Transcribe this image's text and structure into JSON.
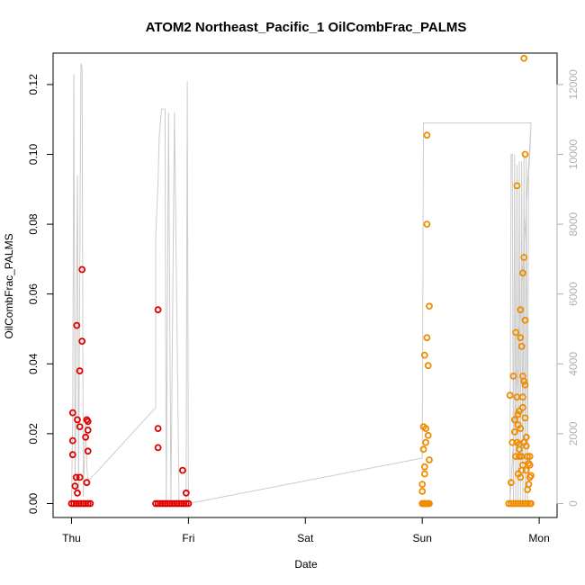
{
  "chart_data": {
    "type": "scatter",
    "title": "ATOM2 Northeast_Pacific_1 OilCombFrac_PALMS",
    "xlabel": "Date",
    "ylabel": "OilCombFrac_PALMS",
    "x_ticks": [
      "Thu",
      "Fri",
      "Sat",
      "Sun",
      "Mon"
    ],
    "x_tick_days": [
      0,
      1,
      2,
      3,
      4
    ],
    "ylim": [
      -0.004,
      0.129
    ],
    "y_ticks": [
      0.0,
      0.02,
      0.04,
      0.06,
      0.08,
      0.1,
      0.12
    ],
    "y_tick_labels": [
      "0.00",
      "0.02",
      "0.04",
      "0.06",
      "0.08",
      "0.10",
      "0.12"
    ],
    "y2lim": [
      -400,
      12900
    ],
    "y2_ticks": [
      0,
      2000,
      4000,
      6000,
      8000,
      10000,
      12000
    ],
    "y2_tick_labels": [
      "0",
      "2000",
      "4000",
      "6000",
      "8000",
      "10000",
      "12000"
    ],
    "grid": false,
    "colors": {
      "series_red": "#e00000",
      "series_orange": "#f08c00",
      "altitude_line": "#cccccc",
      "right_axis": "#b0b0b0"
    },
    "series": [
      {
        "color": "#e00000",
        "points": [
          [
            0.01,
            0.026
          ],
          [
            0.01,
            0.018
          ],
          [
            0.01,
            0.014
          ],
          [
            0.03,
            0.005
          ],
          [
            0.04,
            0.0075
          ],
          [
            0.045,
            0.051
          ],
          [
            0.05,
            0.024
          ],
          [
            0.05,
            0.003
          ],
          [
            0.07,
            0.0075
          ],
          [
            0.07,
            0.038
          ],
          [
            0.07,
            0.022
          ],
          [
            0.09,
            0.067
          ],
          [
            0.09,
            0.0465
          ],
          [
            0.12,
            0.019
          ],
          [
            0.13,
            0.006
          ],
          [
            0.13,
            0.024
          ],
          [
            0.14,
            0.015
          ],
          [
            0.14,
            0.021
          ],
          [
            0.14,
            0.0235
          ],
          [
            0.74,
            0.0555
          ],
          [
            0.74,
            0.0215
          ],
          [
            0.74,
            0.016
          ],
          [
            0.95,
            0.0095
          ],
          [
            0.98,
            0.003
          ],
          [
            0.0,
            0.0
          ],
          [
            0.02,
            0.0
          ],
          [
            0.04,
            0.0
          ],
          [
            0.06,
            0.0
          ],
          [
            0.08,
            0.0
          ],
          [
            0.1,
            0.0
          ],
          [
            0.12,
            0.0
          ],
          [
            0.14,
            0.0
          ],
          [
            0.16,
            0.0
          ],
          [
            0.72,
            0.0
          ],
          [
            0.74,
            0.0
          ],
          [
            0.76,
            0.0
          ],
          [
            0.78,
            0.0
          ],
          [
            0.8,
            0.0
          ],
          [
            0.82,
            0.0
          ],
          [
            0.84,
            0.0
          ],
          [
            0.86,
            0.0
          ],
          [
            0.88,
            0.0
          ],
          [
            0.9,
            0.0
          ],
          [
            0.92,
            0.0
          ],
          [
            0.94,
            0.0
          ],
          [
            0.96,
            0.0
          ],
          [
            0.98,
            0.0
          ],
          [
            1.0,
            0.0
          ]
        ]
      },
      {
        "color": "#f08c00",
        "points": [
          [
            3.0,
            0.0055
          ],
          [
            3.0,
            0.0035
          ],
          [
            3.01,
            0.022
          ],
          [
            3.01,
            0.0155
          ],
          [
            3.02,
            0.0105
          ],
          [
            3.02,
            0.0425
          ],
          [
            3.03,
            0.0215
          ],
          [
            3.03,
            0.0175
          ],
          [
            3.04,
            0.1055
          ],
          [
            3.04,
            0.08
          ],
          [
            3.04,
            0.0475
          ],
          [
            3.05,
            0.0395
          ],
          [
            3.05,
            0.0195
          ],
          [
            3.06,
            0.0125
          ],
          [
            3.06,
            0.0565
          ],
          [
            3.02,
            0.0085
          ],
          [
            3.75,
            0.031
          ],
          [
            3.76,
            0.006
          ],
          [
            3.77,
            0.0175
          ],
          [
            3.78,
            0.0365
          ],
          [
            3.79,
            0.0205
          ],
          [
            3.8,
            0.049
          ],
          [
            3.81,
            0.0305
          ],
          [
            3.81,
            0.091
          ],
          [
            3.82,
            0.0255
          ],
          [
            3.82,
            0.0085
          ],
          [
            3.83,
            0.017
          ],
          [
            3.83,
            0.0135
          ],
          [
            3.84,
            0.0555
          ],
          [
            3.84,
            0.0475
          ],
          [
            3.85,
            0.045
          ],
          [
            3.86,
            0.066
          ],
          [
            3.87,
            0.0705
          ],
          [
            3.87,
            0.1275
          ],
          [
            3.88,
            0.1
          ],
          [
            3.88,
            0.0525
          ],
          [
            3.86,
            0.0365
          ],
          [
            3.87,
            0.035
          ],
          [
            3.88,
            0.034
          ],
          [
            3.89,
            0.019
          ],
          [
            3.9,
            0.0135
          ],
          [
            3.91,
            0.0115
          ],
          [
            3.92,
            0.0075
          ],
          [
            3.92,
            0.0135
          ],
          [
            3.93,
            0.008
          ],
          [
            3.8,
            0.0135
          ],
          [
            3.82,
            0.0225
          ],
          [
            3.83,
            0.0265
          ],
          [
            3.84,
            0.0215
          ],
          [
            3.86,
            0.0305
          ],
          [
            3.86,
            0.0275
          ],
          [
            3.88,
            0.0245
          ],
          [
            3.86,
            0.011
          ],
          [
            3.85,
            0.0095
          ],
          [
            3.84,
            0.0075
          ],
          [
            3.89,
            0.0095
          ],
          [
            3.9,
            0.004
          ],
          [
            3.91,
            0.0055
          ],
          [
            3.79,
            0.024
          ],
          [
            3.81,
            0.0175
          ],
          [
            3.83,
            0.0155
          ],
          [
            3.85,
            0.0135
          ],
          [
            3.87,
            0.0175
          ],
          [
            3.89,
            0.0165
          ],
          [
            3.92,
            0.011
          ],
          [
            3.0,
            0.0
          ],
          [
            3.01,
            0.0
          ],
          [
            3.02,
            0.0
          ],
          [
            3.03,
            0.0
          ],
          [
            3.04,
            0.0
          ],
          [
            3.05,
            0.0
          ],
          [
            3.06,
            0.0
          ],
          [
            3.74,
            0.0
          ],
          [
            3.76,
            0.0
          ],
          [
            3.78,
            0.0
          ],
          [
            3.8,
            0.0
          ],
          [
            3.82,
            0.0
          ],
          [
            3.84,
            0.0
          ],
          [
            3.86,
            0.0
          ],
          [
            3.88,
            0.0
          ],
          [
            3.9,
            0.0
          ],
          [
            3.92,
            0.0
          ],
          [
            3.93,
            0.0
          ]
        ]
      }
    ],
    "altitude_line": [
      [
        0.0,
        0
      ],
      [
        0.01,
        2600
      ],
      [
        0.02,
        12300
      ],
      [
        0.03,
        200
      ],
      [
        0.05,
        9400
      ],
      [
        0.06,
        300
      ],
      [
        0.08,
        12600
      ],
      [
        0.09,
        12500
      ],
      [
        0.1,
        200
      ],
      [
        0.12,
        2500
      ],
      [
        0.13,
        1100
      ],
      [
        0.14,
        700
      ],
      [
        0.16,
        700
      ],
      [
        0.72,
        2750
      ],
      [
        0.72,
        7600
      ],
      [
        0.74,
        9200
      ],
      [
        0.75,
        10500
      ],
      [
        0.77,
        11300
      ],
      [
        0.8,
        11300
      ],
      [
        0.81,
        0
      ],
      [
        0.83,
        11200
      ],
      [
        0.85,
        0
      ],
      [
        0.88,
        11200
      ],
      [
        0.92,
        0
      ],
      [
        0.96,
        0
      ],
      [
        0.98,
        0
      ],
      [
        0.99,
        12100
      ],
      [
        1.0,
        0
      ],
      [
        3.0,
        1300
      ],
      [
        3.01,
        10900
      ],
      [
        3.05,
        10900
      ],
      [
        3.1,
        10900
      ],
      [
        3.4,
        10900
      ],
      [
        3.7,
        10900
      ],
      [
        3.93,
        10900
      ],
      [
        3.75,
        0
      ],
      [
        3.76,
        10000
      ],
      [
        3.77,
        10000
      ],
      [
        3.78,
        0
      ],
      [
        3.79,
        10000
      ],
      [
        3.8,
        0
      ],
      [
        3.81,
        9700
      ],
      [
        3.82,
        0
      ],
      [
        3.83,
        9800
      ],
      [
        3.84,
        0
      ],
      [
        3.85,
        9800
      ],
      [
        3.86,
        0
      ],
      [
        3.87,
        10000
      ],
      [
        3.88,
        0
      ],
      [
        3.89,
        9900
      ],
      [
        3.9,
        0
      ],
      [
        3.91,
        9500
      ],
      [
        3.92,
        10000
      ],
      [
        3.93,
        10900
      ]
    ]
  }
}
